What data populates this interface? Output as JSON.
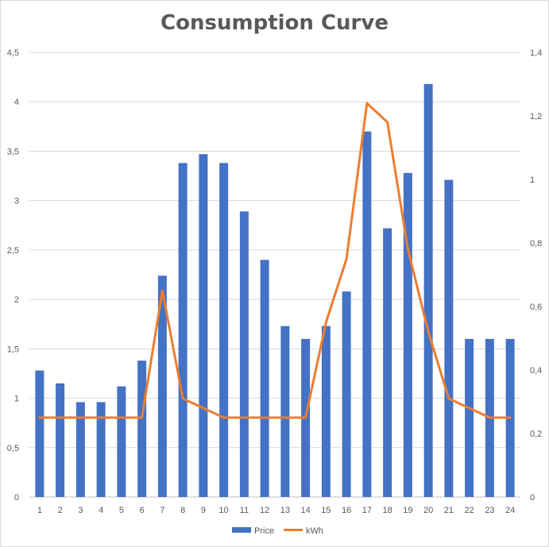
{
  "chart_data": {
    "type": "bar+line",
    "title": "Consumption Curve",
    "categories": [
      "1",
      "2",
      "3",
      "4",
      "5",
      "6",
      "7",
      "8",
      "9",
      "10",
      "11",
      "12",
      "13",
      "14",
      "15",
      "16",
      "17",
      "18",
      "19",
      "20",
      "21",
      "22",
      "23",
      "24"
    ],
    "series": [
      {
        "name": "Price",
        "type": "bar",
        "axis": "left",
        "color": "#4472c4",
        "values": [
          1.28,
          1.15,
          0.96,
          0.96,
          1.12,
          1.38,
          2.24,
          3.38,
          3.47,
          3.38,
          2.89,
          2.4,
          1.73,
          1.6,
          1.73,
          2.08,
          3.7,
          2.72,
          3.28,
          4.18,
          3.21,
          1.6,
          1.6,
          1.6
        ]
      },
      {
        "name": "kWh",
        "type": "line",
        "axis": "right",
        "color": "#ed7d31",
        "values": [
          0.25,
          0.25,
          0.25,
          0.25,
          0.25,
          0.25,
          0.65,
          0.31,
          0.28,
          0.25,
          0.25,
          0.25,
          0.25,
          0.25,
          0.55,
          0.75,
          1.24,
          1.18,
          0.78,
          0.52,
          0.31,
          0.28,
          0.25,
          0.25
        ]
      }
    ],
    "y_left": {
      "min": 0,
      "max": 4.5,
      "ticks": [
        "0",
        "0,5",
        "1",
        "1,5",
        "2",
        "2,5",
        "3",
        "3,5",
        "4",
        "4,5"
      ]
    },
    "y_right": {
      "min": 0,
      "max": 1.4,
      "ticks": [
        "0",
        "0,2",
        "0,4",
        "0,6",
        "0,8",
        "1",
        "1,2",
        "1,4"
      ]
    },
    "grid": true,
    "legend": "bottom"
  }
}
